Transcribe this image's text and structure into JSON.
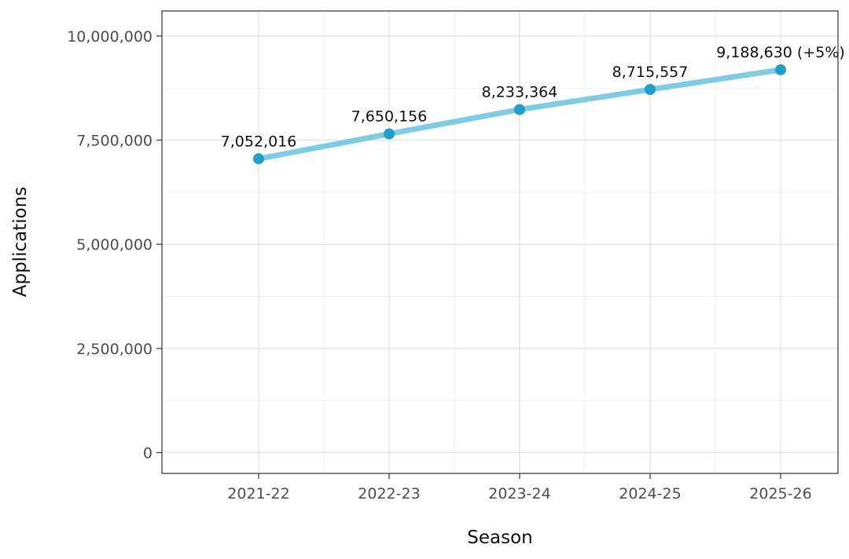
{
  "chart_data": {
    "type": "line",
    "categories": [
      "2021-22",
      "2022-23",
      "2023-24",
      "2024-25",
      "2025-26"
    ],
    "series": [
      {
        "values": [
          7052016,
          7650156,
          8233364,
          8715557,
          9188630
        ],
        "color": "#7ecbe3",
        "point_color": "#1f9fca"
      }
    ],
    "data_labels": [
      "7,052,016",
      "7,650,156",
      "8,233,364",
      "8,715,557",
      "9,188,630 (+5%)"
    ],
    "xlabel": "Season",
    "ylabel": "Applications",
    "y_ticks": [
      0,
      2500000,
      5000000,
      7500000,
      10000000
    ],
    "y_tick_labels": [
      "0",
      "2,500,000",
      "5,000,000",
      "7,500,000",
      "10,000,000"
    ],
    "ylim": [
      -500000,
      10600000
    ],
    "grid": true,
    "legend": "none"
  }
}
